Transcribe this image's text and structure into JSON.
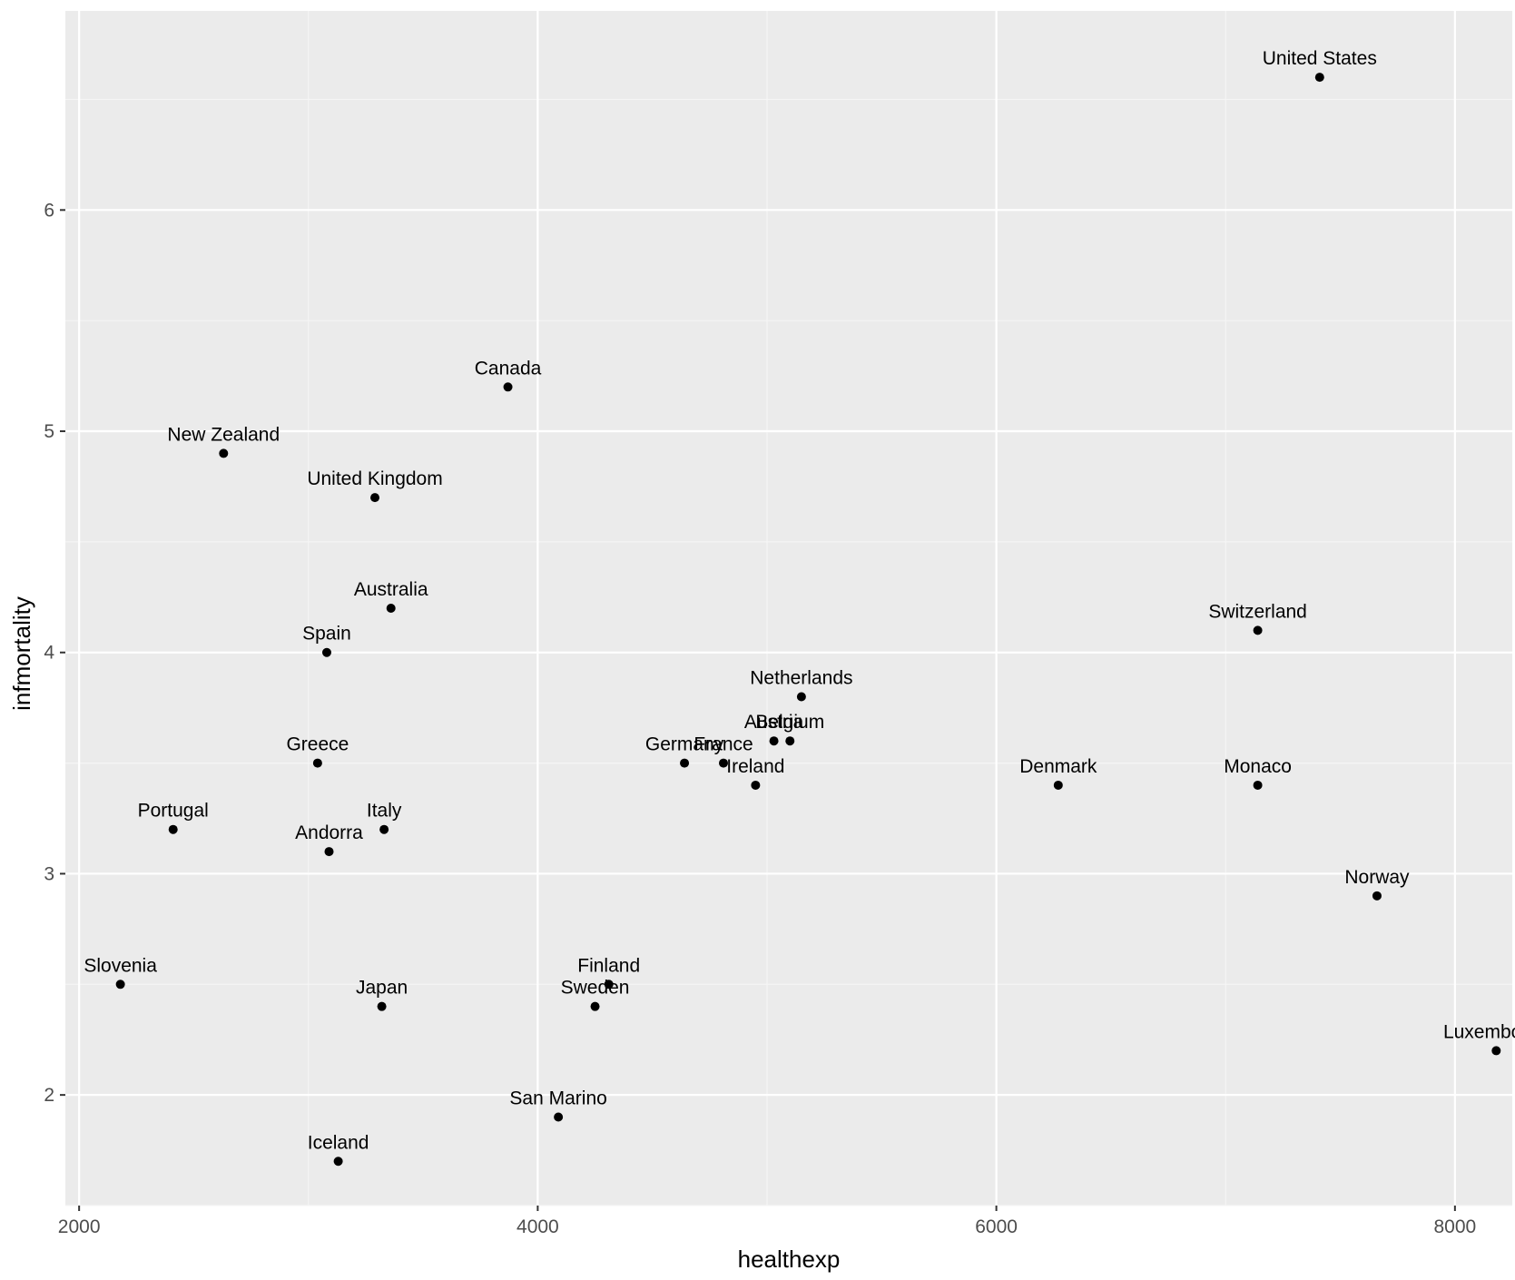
{
  "chart_data": {
    "type": "scatter",
    "title": "",
    "xlabel": "healthexp",
    "ylabel": "infmortality",
    "xlim": [
      1940,
      8250
    ],
    "ylim": [
      1.5,
      6.9
    ],
    "x_ticks": [
      2000,
      4000,
      6000,
      8000
    ],
    "y_ticks": [
      2,
      3,
      4,
      5,
      6
    ],
    "x_tick_labels": [
      "2000",
      "4000",
      "6000",
      "8000"
    ],
    "y_tick_labels": [
      "2",
      "3",
      "4",
      "5",
      "6"
    ],
    "grid": true,
    "legend": "none",
    "points": [
      {
        "label": "United States",
        "x": 7410,
        "y": 6.6
      },
      {
        "label": "Canada",
        "x": 3870,
        "y": 5.2
      },
      {
        "label": "New Zealand",
        "x": 2630,
        "y": 4.9
      },
      {
        "label": "United Kingdom",
        "x": 3290,
        "y": 4.7
      },
      {
        "label": "Australia",
        "x": 3360,
        "y": 4.2
      },
      {
        "label": "Switzerland",
        "x": 7140,
        "y": 4.1
      },
      {
        "label": "Spain",
        "x": 3080,
        "y": 4.0
      },
      {
        "label": "Netherlands",
        "x": 5150,
        "y": 3.8
      },
      {
        "label": "Austria",
        "x": 5030,
        "y": 3.6
      },
      {
        "label": "Belgium",
        "x": 5100,
        "y": 3.6
      },
      {
        "label": "Greece",
        "x": 3040,
        "y": 3.5
      },
      {
        "label": "Germany",
        "x": 4640,
        "y": 3.5
      },
      {
        "label": "France",
        "x": 4810,
        "y": 3.5
      },
      {
        "label": "Ireland",
        "x": 4950,
        "y": 3.4
      },
      {
        "label": "Denmark",
        "x": 6270,
        "y": 3.4
      },
      {
        "label": "Monaco",
        "x": 7140,
        "y": 3.4
      },
      {
        "label": "Portugal",
        "x": 2410,
        "y": 3.2
      },
      {
        "label": "Italy",
        "x": 3330,
        "y": 3.2
      },
      {
        "label": "Andorra",
        "x": 3090,
        "y": 3.1
      },
      {
        "label": "Norway",
        "x": 7660,
        "y": 2.9
      },
      {
        "label": "Slovenia",
        "x": 2180,
        "y": 2.5
      },
      {
        "label": "Finland",
        "x": 4310,
        "y": 2.5
      },
      {
        "label": "Japan",
        "x": 3320,
        "y": 2.4
      },
      {
        "label": "Sweden",
        "x": 4250,
        "y": 2.4
      },
      {
        "label": "Luxembourg",
        "x": 8180,
        "y": 2.2
      },
      {
        "label": "San Marino",
        "x": 4090,
        "y": 1.9
      },
      {
        "label": "Iceland",
        "x": 3130,
        "y": 1.7
      }
    ]
  }
}
